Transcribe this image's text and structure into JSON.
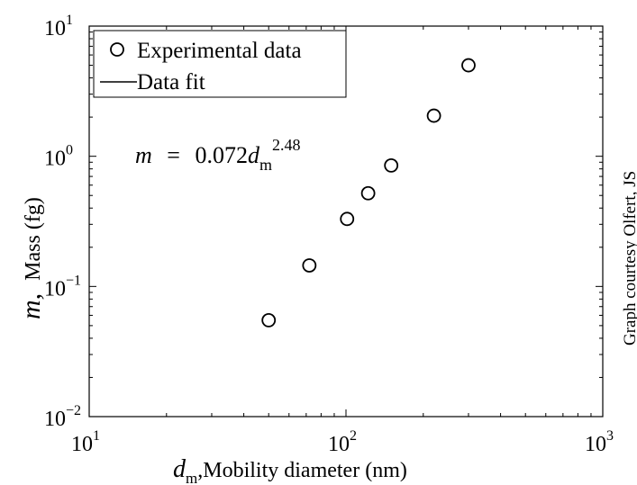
{
  "chart_data": {
    "type": "scatter",
    "x_scale": "log",
    "y_scale": "log",
    "xlim": [
      10,
      1000
    ],
    "ylim": [
      0.01,
      10
    ],
    "x_ticks": [
      {
        "value": 10,
        "base": "10",
        "exp": "1"
      },
      {
        "value": 100,
        "base": "10",
        "exp": "2"
      },
      {
        "value": 1000,
        "base": "10",
        "exp": "3"
      }
    ],
    "y_ticks": [
      {
        "value": 0.01,
        "base": "10",
        "exp": "−2"
      },
      {
        "value": 0.1,
        "base": "10",
        "exp": "−1"
      },
      {
        "value": 1,
        "base": "10",
        "exp": "0"
      },
      {
        "value": 10,
        "base": "10",
        "exp": "1"
      }
    ],
    "xlabel": {
      "symbol": "d",
      "subscript": "m",
      "text": ",Mobility diameter (nm)"
    },
    "ylabel": {
      "symbol": "m,",
      "text": "Mass (fg)"
    },
    "series": [
      {
        "name": "Experimental data",
        "marker": "circle",
        "points": [
          {
            "x": 50,
            "y": 0.055
          },
          {
            "x": 72,
            "y": 0.145
          },
          {
            "x": 101,
            "y": 0.33
          },
          {
            "x": 122,
            "y": 0.52
          },
          {
            "x": 150,
            "y": 0.85
          },
          {
            "x": 220,
            "y": 2.05
          },
          {
            "x": 300,
            "y": 5.0
          }
        ]
      },
      {
        "name": "Data fit",
        "style": "line",
        "fit": {
          "coefficient": 0.072,
          "exponent": 2.48,
          "x_range": [
            50,
            300
          ]
        }
      }
    ],
    "legend_position": "top-left",
    "annotation": {
      "lhs": "m",
      "eq": "=",
      "coef": "0.072",
      "var": "d",
      "sub": "m",
      "exp": "2.48"
    },
    "credit": "Graph courtesy Olfert, JS",
    "grid": false,
    "colors": {
      "line": "#000000",
      "marker_edge": "#000000",
      "background": "#ffffff"
    }
  }
}
